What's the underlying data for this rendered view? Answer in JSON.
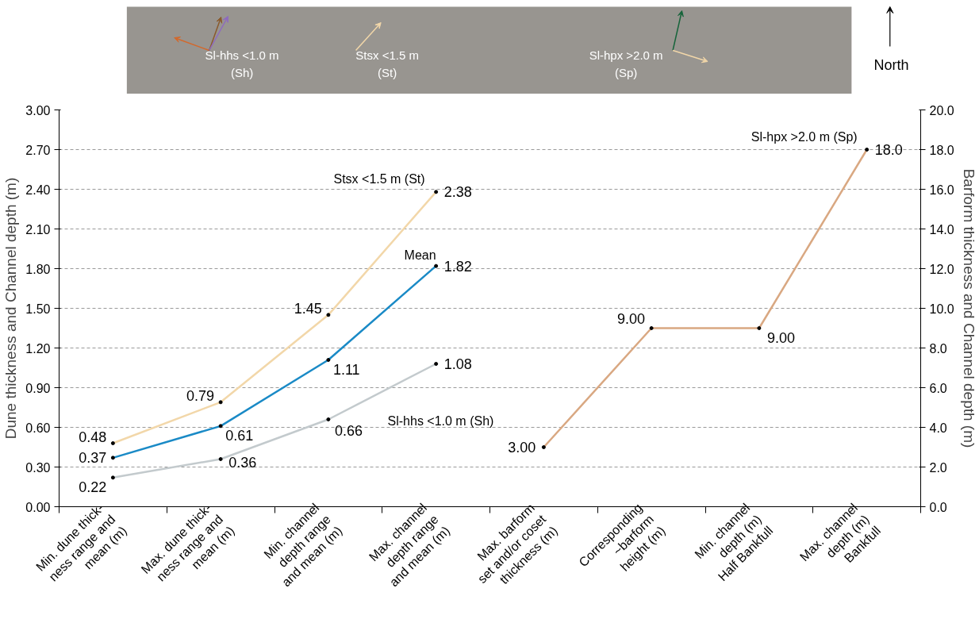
{
  "chart_data": [
    {
      "type": "other",
      "annotations": [
        "Sl-hhs <1.0 m\n(Sh)",
        "Stsx <1.5 m\n(St)",
        "Sl-hpx >2.0 m\n(Sp)",
        "North"
      ]
    },
    {
      "type": "line",
      "ylabel": "Dune thickness and Channel depth (m)",
      "y2label": "Barform thickness and Channel depth (m)",
      "categories": [
        "Min. dune thick-\nness range and\nmean (m)",
        "Max. dune thick-\nness range and\nmean (m)",
        "Min. channel\ndepth range\nand mean (m)",
        "Max. channel\ndepth range\nand mean (m)",
        "Max. barform\nset and/or coset\nthickness (m)",
        "Corresponding\n~barform\nheight (m)",
        "Min. channel\ndepth (m)\nHalf Bankfull",
        "Max. channel\ndepth (m)\nBankfull"
      ],
      "ylim": [
        0,
        3
      ],
      "yticks": [
        {
          "value": 0,
          "label": "0.00"
        },
        {
          "value": 0.3,
          "label": "0.30"
        },
        {
          "value": 0.6,
          "label": "0.60"
        },
        {
          "value": 0.9,
          "label": "0.90"
        },
        {
          "value": 1.2,
          "label": "1.20"
        },
        {
          "value": 1.5,
          "label": "1.50"
        },
        {
          "value": 1.8,
          "label": "1.80"
        },
        {
          "value": 2.1,
          "label": "2.10"
        },
        {
          "value": 2.4,
          "label": "2.40"
        },
        {
          "value": 2.7,
          "label": "2.70"
        },
        {
          "value": 3,
          "label": "3.00"
        }
      ],
      "y2lim": [
        0,
        20
      ],
      "y2ticks": [
        {
          "value": 0,
          "label": "0.0"
        },
        {
          "value": 2,
          "label": "2.0"
        },
        {
          "value": 4,
          "label": "4.0"
        },
        {
          "value": 6,
          "label": "6.0"
        },
        {
          "value": 8,
          "label": "8.0"
        },
        {
          "value": 10,
          "label": "10.0"
        },
        {
          "value": 12,
          "label": "12.0"
        },
        {
          "value": 14,
          "label": "14.0"
        },
        {
          "value": 16,
          "label": "16.0"
        },
        {
          "value": 18,
          "label": "18.0"
        },
        {
          "value": 20,
          "label": "20.0"
        }
      ],
      "grid": "y",
      "marker": "circle",
      "line_style": "solid",
      "series": [
        {
          "name": "Stsx <1.5 m (St)",
          "color": "#f2d7a9",
          "values": [
            0.48,
            0.79,
            1.45,
            2.38,
            null,
            null,
            null,
            null
          ],
          "value_labels": [
            "0.48",
            "0.79",
            "1.45",
            "2.38",
            null,
            null,
            null,
            null
          ]
        },
        {
          "name": "Mean",
          "color": "#1a8ac6",
          "values": [
            0.37,
            0.61,
            1.11,
            1.82,
            null,
            null,
            null,
            null
          ],
          "value_labels": [
            "0.37",
            "0.61",
            "1.11",
            "1.82",
            null,
            null,
            null,
            null
          ]
        },
        {
          "name": "Sl-hhs <1.0 m (Sh)",
          "color": "#c3cacd",
          "values": [
            0.22,
            0.36,
            0.66,
            1.08,
            null,
            null,
            null,
            null
          ],
          "value_labels": [
            "0.22",
            "0.36",
            "0.66",
            "1.08",
            null,
            null,
            null,
            null
          ]
        },
        {
          "name": "Sl-hpx >2.0 m (Sp)",
          "color": "#d9a882",
          "axis": "y2",
          "values": [
            null,
            null,
            null,
            null,
            3.0,
            9.0,
            9.0,
            18.0
          ],
          "value_labels": [
            null,
            null,
            null,
            null,
            "3.00",
            "9.00",
            "9.00",
            "18.0"
          ]
        }
      ]
    }
  ]
}
